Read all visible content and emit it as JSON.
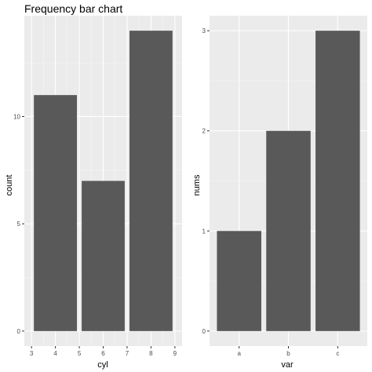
{
  "chart_data": [
    {
      "type": "bar",
      "title": "Frequency bar chart",
      "xlabel": "cyl",
      "ylabel": "count",
      "x": [
        4,
        6,
        8
      ],
      "values": [
        11,
        7,
        14
      ],
      "xlim": [
        3,
        9
      ],
      "ylim": [
        0,
        14
      ],
      "x_ticks": [
        3,
        4,
        5,
        6,
        7,
        8,
        9
      ],
      "y_ticks": [
        0,
        5,
        10
      ],
      "grid": true,
      "bar_color": "#595959",
      "panel_background": "#ebebeb"
    },
    {
      "type": "bar",
      "title": "",
      "xlabel": "var",
      "ylabel": "nums",
      "categories": [
        "a",
        "b",
        "c"
      ],
      "values": [
        1,
        2,
        3
      ],
      "ylim": [
        0,
        3
      ],
      "y_ticks": [
        0,
        1,
        2,
        3
      ],
      "grid": true,
      "bar_color": "#595959",
      "panel_background": "#ebebeb"
    }
  ]
}
